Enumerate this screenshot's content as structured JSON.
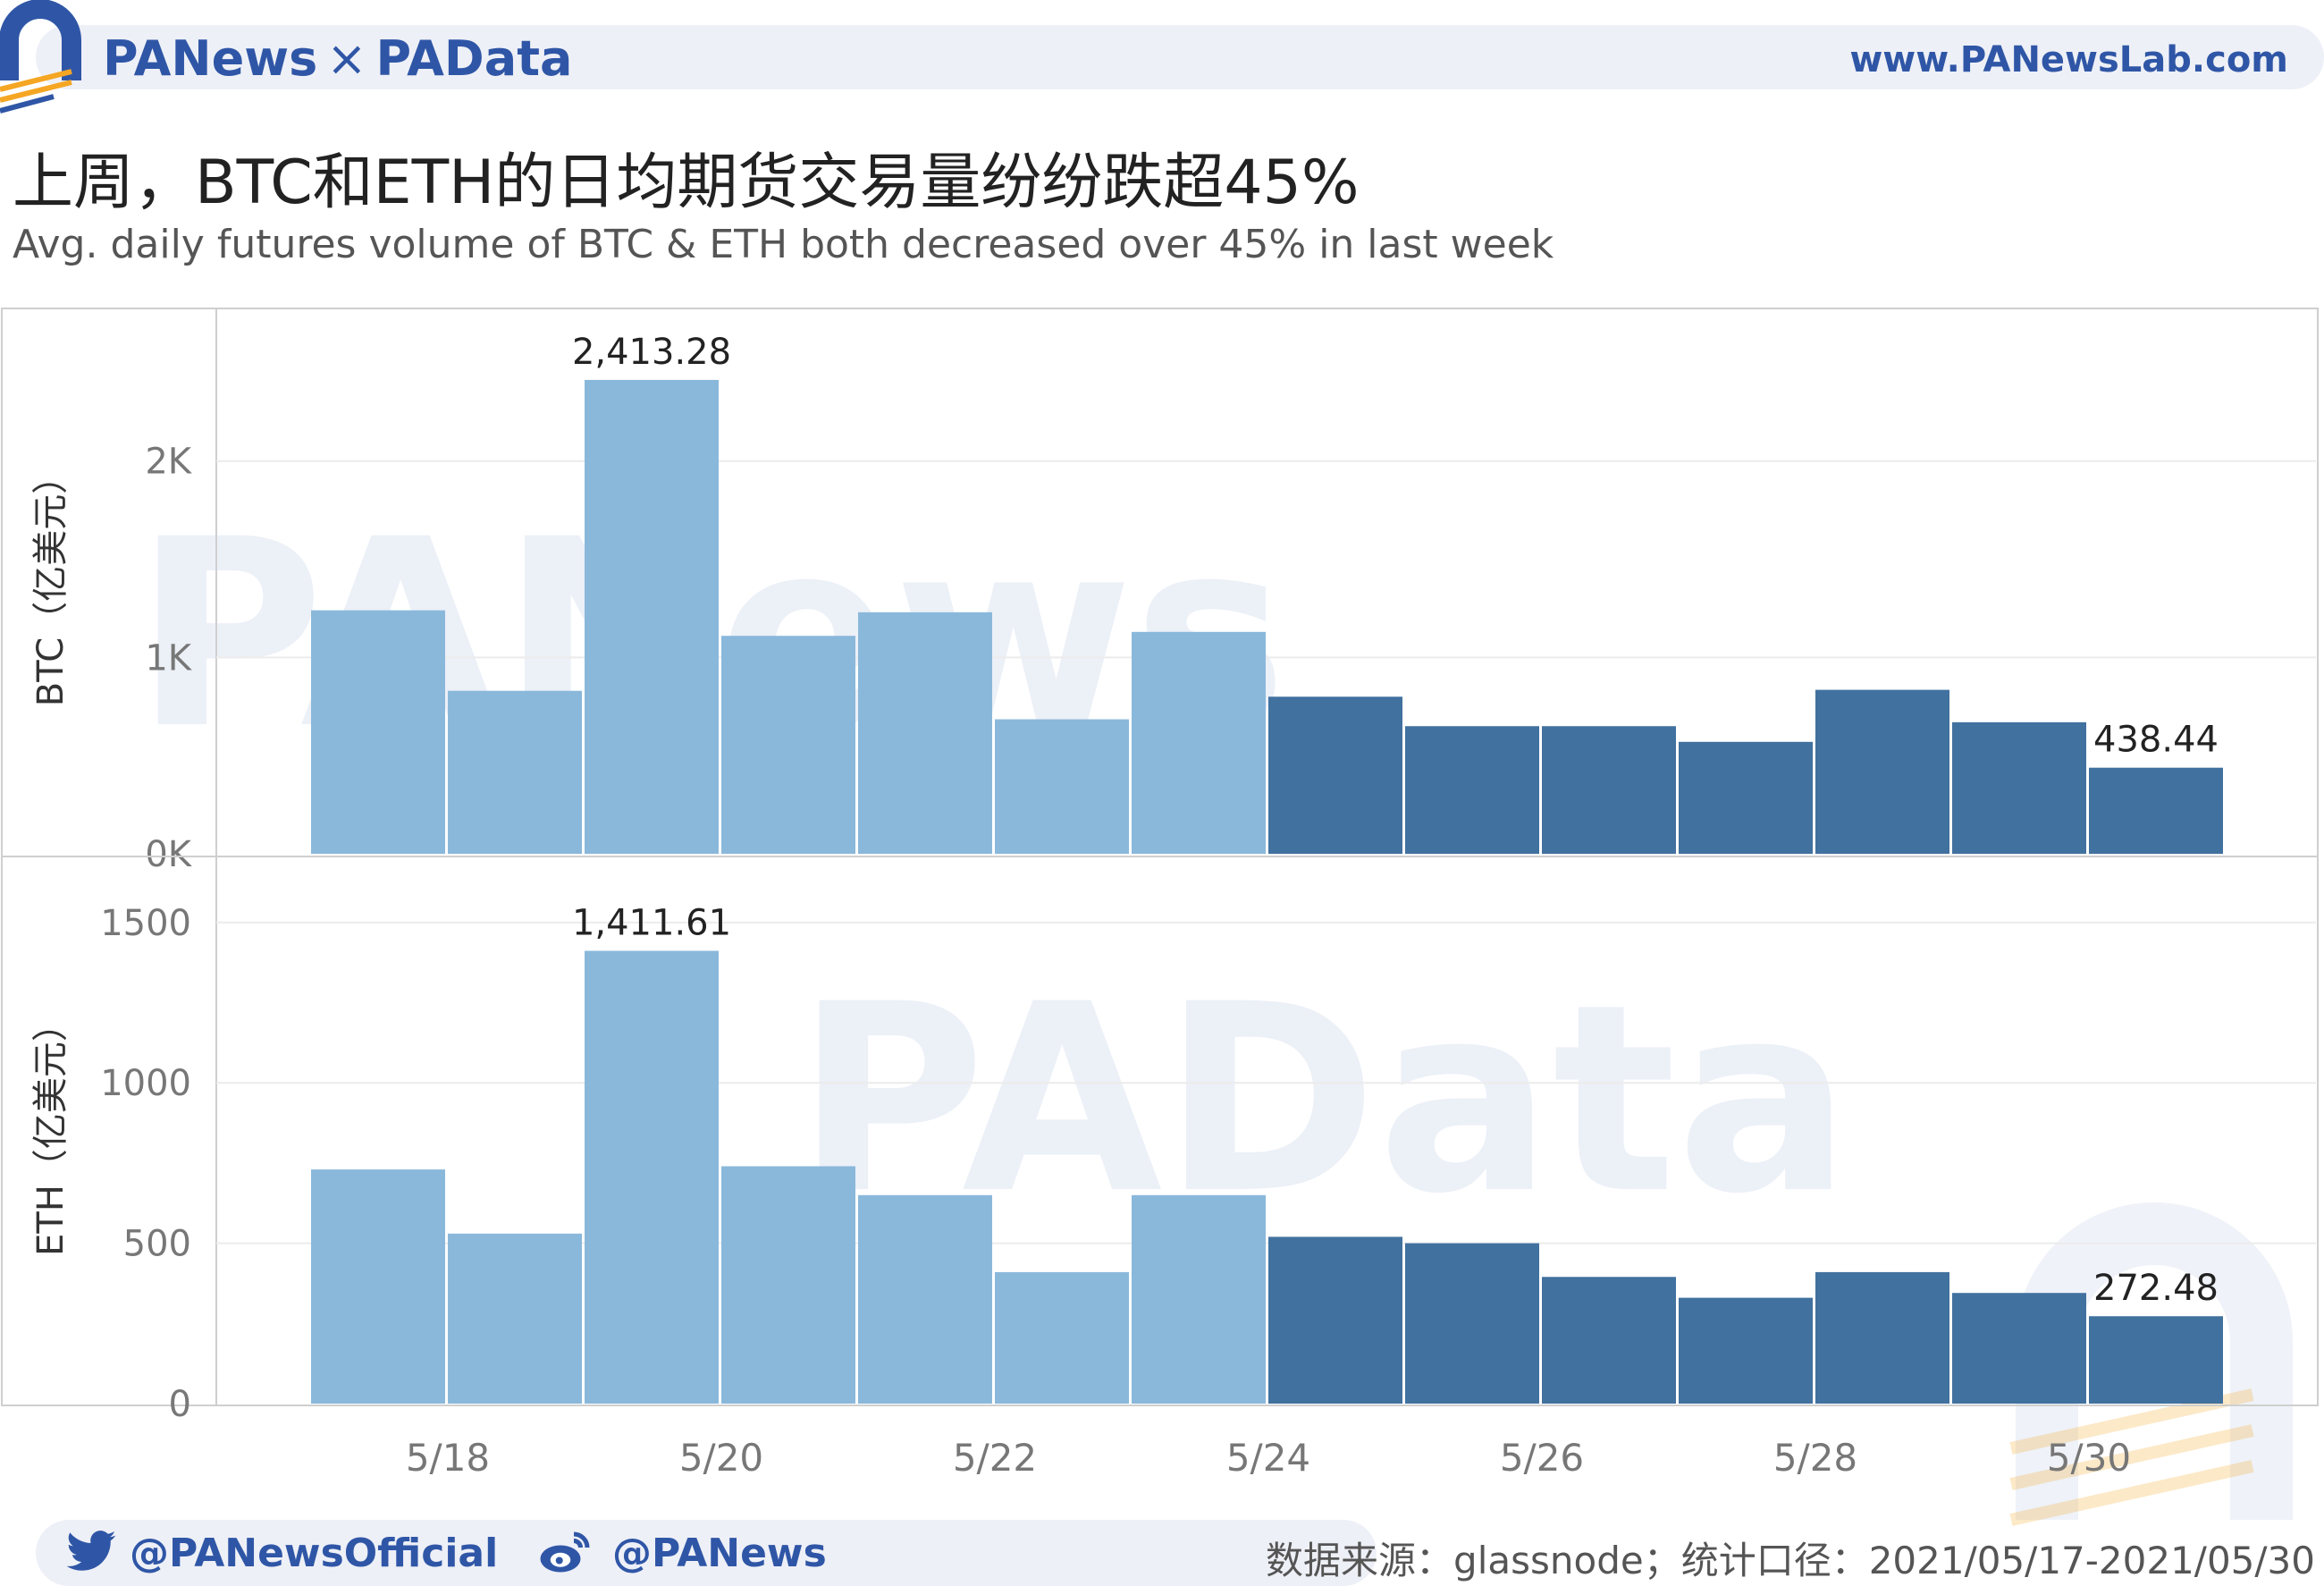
{
  "header": {
    "brand_left": "PANews",
    "brand_sep": "×",
    "brand_right": "PAData",
    "url": "www.PANewsLab.com"
  },
  "title": "上周，BTC和ETH的日均期货交易量纷纷跌超45%",
  "subtitle": "Avg. daily futures volume of BTC & ETH both decreased over 45% in last week",
  "watermarks": {
    "top": "PANews",
    "bottom": "PAData"
  },
  "footer": {
    "twitter": "@PANewsOfficial",
    "weibo": "@PANews",
    "source": "数据来源：glassnode；统计口径：2021/05/17-2021/05/30"
  },
  "colors": {
    "prev_week": "#8ab8db",
    "last_week": "#41719f",
    "brand": "#2f56a6"
  },
  "chart_data": [
    {
      "type": "bar",
      "ylabel": "BTC（亿美元）",
      "yticks": [
        "0K",
        "1K",
        "2K"
      ],
      "ytick_values": [
        0,
        1000,
        2000
      ],
      "ylim": [
        0,
        2800
      ],
      "x": [
        "5/17",
        "5/18",
        "5/19",
        "5/20",
        "5/21",
        "5/22",
        "5/23",
        "5/24",
        "5/25",
        "5/26",
        "5/27",
        "5/28",
        "5/29",
        "5/30"
      ],
      "values": [
        1240,
        830,
        2413.28,
        1110,
        1230,
        685,
        1130,
        800,
        650,
        650,
        570,
        835,
        670,
        438.44
      ],
      "highlight_labels": [
        {
          "index": 2,
          "label": "2,413.28"
        },
        {
          "index": 13,
          "label": "438.44"
        }
      ]
    },
    {
      "type": "bar",
      "ylabel": "ETH（亿美元）",
      "yticks": [
        "0",
        "500",
        "1000",
        "1500"
      ],
      "ytick_values": [
        0,
        500,
        1000,
        1500
      ],
      "ylim": [
        0,
        1650
      ],
      "x": [
        "5/17",
        "5/18",
        "5/19",
        "5/20",
        "5/21",
        "5/22",
        "5/23",
        "5/24",
        "5/25",
        "5/26",
        "5/27",
        "5/28",
        "5/29",
        "5/30"
      ],
      "values": [
        730,
        530,
        1411.61,
        740,
        650,
        410,
        650,
        520,
        500,
        395,
        330,
        410,
        345,
        272.48
      ],
      "highlight_labels": [
        {
          "index": 2,
          "label": "1,411.61"
        },
        {
          "index": 13,
          "label": "272.48"
        }
      ]
    }
  ],
  "x_axis": {
    "tick_labels": [
      "5/18",
      "5/20",
      "5/22",
      "5/24",
      "5/26",
      "5/28",
      "5/30"
    ],
    "tick_indices": [
      1,
      3,
      5,
      7,
      9,
      11,
      13
    ]
  }
}
